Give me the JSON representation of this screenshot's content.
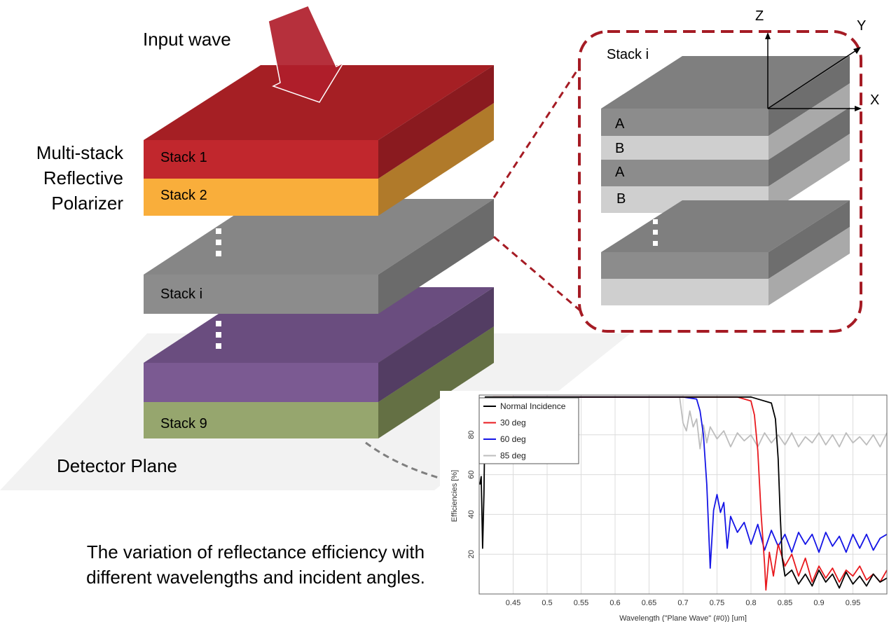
{
  "diagram": {
    "input_wave": "Input wave",
    "multi_stack": [
      "Multi-stack",
      "Reflective",
      "Polarizer"
    ],
    "stacks": {
      "s1": "Stack 1",
      "s2": "Stack 2",
      "si": "Stack i",
      "s9": "Stack 9"
    },
    "detector": "Detector Plane",
    "detail": {
      "title": "Stack i",
      "layers": [
        "A",
        "B",
        "A",
        "B"
      ],
      "axes": {
        "z": "Z",
        "y": "Y",
        "x": "X"
      }
    },
    "caption": [
      "The variation of reflectance efficiency with",
      "different wavelengths and incident angles."
    ],
    "colors": {
      "stack1": "#C1272D",
      "stack2": "#F9AE3B",
      "stacki": "#808080",
      "stack_purple": "#7B5A92",
      "stack9": "#96A66E",
      "dash": "#A51B24"
    }
  },
  "chart_data": {
    "type": "line",
    "xlabel": "Wavelength (\"Plane Wave\" (#0)) [um]",
    "ylabel": "Efficiencies [%]",
    "xlim": [
      0.4,
      1.0
    ],
    "ylim": [
      0,
      100
    ],
    "xticks": [
      "0.45",
      "0.5",
      "0.55",
      "0.6",
      "0.65",
      "0.7",
      "0.75",
      "0.8",
      "0.85",
      "0.9",
      "0.95"
    ],
    "yticks": [
      "20",
      "40",
      "60",
      "80"
    ],
    "legend_position": "top-left",
    "series": [
      {
        "name": "Normal Incidence",
        "color": "#000000",
        "x": [
          0.401,
          0.403,
          0.405,
          0.407,
          0.409,
          0.412,
          0.42,
          0.5,
          0.6,
          0.7,
          0.78,
          0.8,
          0.81,
          0.83,
          0.836,
          0.84,
          0.843,
          0.846,
          0.85,
          0.86,
          0.87,
          0.88,
          0.89,
          0.9,
          0.91,
          0.92,
          0.93,
          0.94,
          0.95,
          0.96,
          0.97,
          0.98,
          0.99,
          1.0
        ],
        "y": [
          55,
          59,
          23,
          50,
          99,
          99,
          99,
          99,
          99,
          99,
          99,
          99,
          98,
          96,
          88,
          68,
          40,
          18,
          9,
          12,
          5,
          10,
          4,
          12,
          6,
          10,
          3,
          11,
          5,
          9,
          4,
          10,
          6,
          8
        ]
      },
      {
        "name": "30 deg",
        "color": "#E8191E",
        "x": [
          0.42,
          0.5,
          0.6,
          0.7,
          0.78,
          0.8,
          0.805,
          0.81,
          0.815,
          0.82,
          0.822,
          0.827,
          0.833,
          0.84,
          0.85,
          0.86,
          0.87,
          0.88,
          0.89,
          0.9,
          0.91,
          0.92,
          0.93,
          0.94,
          0.95,
          0.96,
          0.97,
          0.98,
          0.99,
          1.0
        ],
        "y": [
          99,
          99,
          99,
          99,
          99,
          97,
          90,
          72,
          40,
          15,
          2,
          21,
          9,
          25,
          14,
          20,
          9,
          18,
          6,
          14,
          8,
          13,
          6,
          12,
          9,
          14,
          7,
          10,
          6,
          12
        ]
      },
      {
        "name": "60 deg",
        "color": "#1515E6",
        "x": [
          0.45,
          0.6,
          0.7,
          0.72,
          0.725,
          0.73,
          0.735,
          0.74,
          0.745,
          0.75,
          0.755,
          0.76,
          0.765,
          0.77,
          0.78,
          0.79,
          0.8,
          0.81,
          0.82,
          0.83,
          0.84,
          0.85,
          0.86,
          0.87,
          0.88,
          0.89,
          0.9,
          0.91,
          0.92,
          0.93,
          0.94,
          0.95,
          0.96,
          0.97,
          0.98,
          0.99,
          1.0
        ],
        "y": [
          99,
          99,
          99,
          98,
          92,
          80,
          55,
          13,
          42,
          50,
          41,
          46,
          23,
          39,
          31,
          36,
          25,
          35,
          22,
          32,
          24,
          30,
          21,
          31,
          25,
          30,
          21,
          31,
          24,
          29,
          21,
          30,
          23,
          30,
          22,
          28,
          30
        ]
      },
      {
        "name": "85 deg",
        "color": "#BDBDBD",
        "x": [
          0.68,
          0.695,
          0.7,
          0.705,
          0.71,
          0.715,
          0.72,
          0.725,
          0.73,
          0.735,
          0.74,
          0.75,
          0.76,
          0.77,
          0.78,
          0.79,
          0.8,
          0.81,
          0.82,
          0.83,
          0.84,
          0.85,
          0.86,
          0.87,
          0.88,
          0.89,
          0.9,
          0.91,
          0.92,
          0.93,
          0.94,
          0.95,
          0.96,
          0.97,
          0.98,
          0.99,
          1.0
        ],
        "y": [
          99,
          99,
          86,
          82,
          92,
          84,
          88,
          73,
          85,
          76,
          84,
          78,
          82,
          74,
          81,
          77,
          80,
          74,
          81,
          76,
          80,
          75,
          81,
          74,
          79,
          76,
          81,
          75,
          80,
          74,
          81,
          76,
          79,
          75,
          80,
          74,
          81
        ]
      }
    ]
  }
}
